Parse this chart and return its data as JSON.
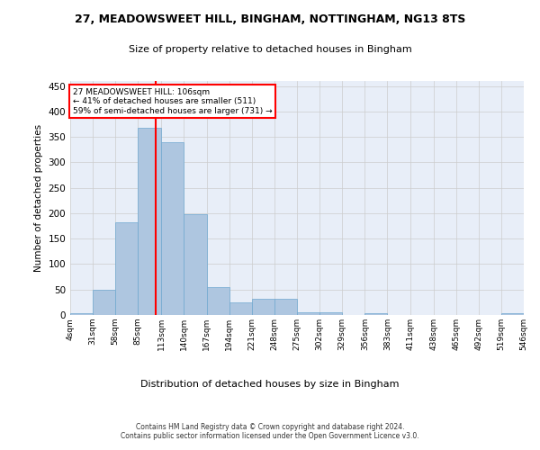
{
  "title1": "27, MEADOWSWEET HILL, BINGHAM, NOTTINGHAM, NG13 8TS",
  "title2": "Size of property relative to detached houses in Bingham",
  "xlabel": "Distribution of detached houses by size in Bingham",
  "ylabel": "Number of detached properties",
  "bar_color": "#aec6e0",
  "bar_edge_color": "#6fa8d0",
  "grid_color": "#cccccc",
  "background_color": "#e8eef8",
  "vline_x": 106,
  "vline_color": "red",
  "annotation_text": "27 MEADOWSWEET HILL: 106sqm\n← 41% of detached houses are smaller (511)\n59% of semi-detached houses are larger (731) →",
  "annotation_box_color": "white",
  "annotation_box_edge": "red",
  "bin_edges": [
    4,
    31,
    58,
    85,
    113,
    140,
    167,
    194,
    221,
    248,
    275,
    302,
    329,
    356,
    383,
    411,
    438,
    465,
    492,
    519,
    546
  ],
  "bar_heights": [
    4,
    50,
    183,
    368,
    340,
    199,
    54,
    25,
    32,
    32,
    5,
    6,
    0,
    4,
    0,
    0,
    0,
    0,
    0,
    4
  ],
  "ylim": [
    0,
    460
  ],
  "yticks": [
    0,
    50,
    100,
    150,
    200,
    250,
    300,
    350,
    400,
    450
  ],
  "footer_line1": "Contains HM Land Registry data © Crown copyright and database right 2024.",
  "footer_line2": "Contains public sector information licensed under the Open Government Licence v3.0."
}
